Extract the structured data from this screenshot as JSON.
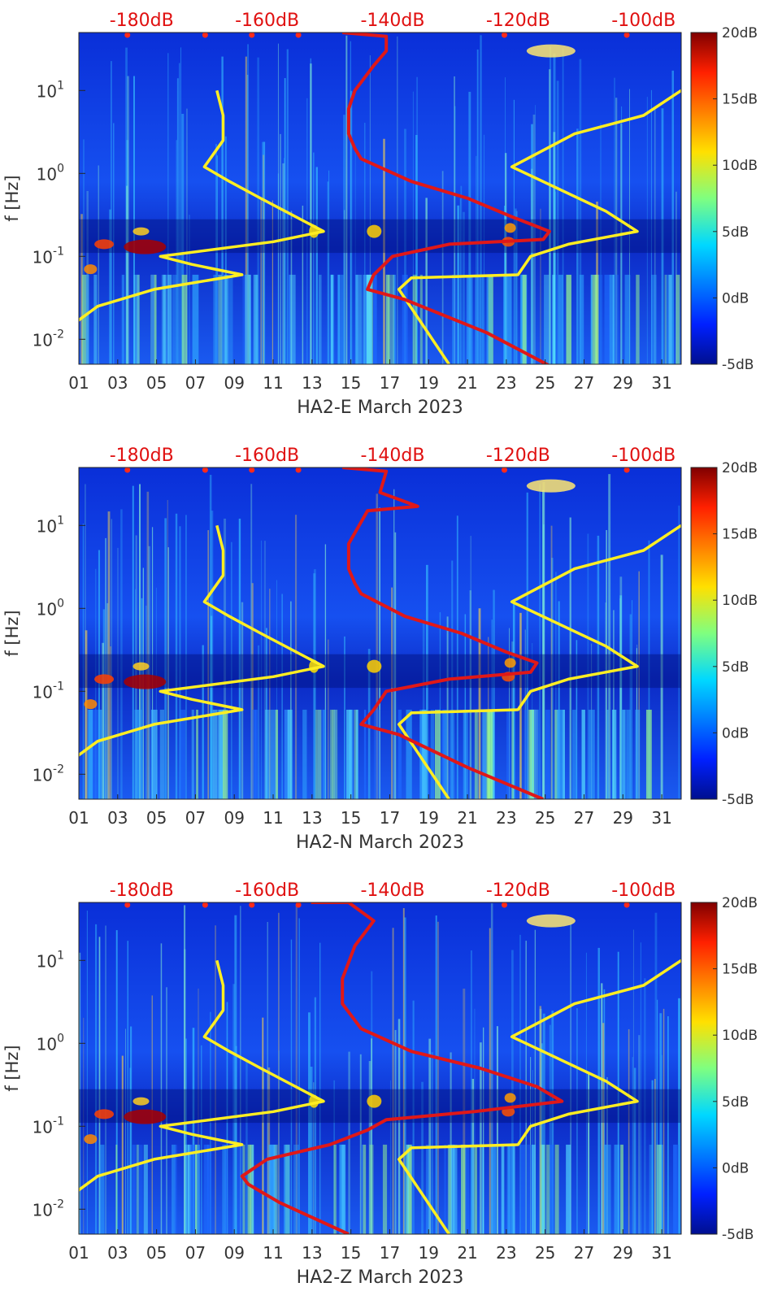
{
  "chart_data": [
    {
      "type": "heatmap",
      "title": "",
      "xlabel": "HA2-E March 2023",
      "ylabel": "f [Hz]",
      "x_ticks": [
        "01",
        "03",
        "05",
        "07",
        "09",
        "11",
        "13",
        "15",
        "17",
        "19",
        "21",
        "23",
        "25",
        "27",
        "29",
        "31"
      ],
      "x_range": [
        1,
        32
      ],
      "y_scale": "log",
      "y_range": [
        0.005,
        50
      ],
      "y_ticks": [
        {
          "base": "10",
          "exp": "-2",
          "value": 0.01
        },
        {
          "base": "10",
          "exp": "-1",
          "value": 0.1
        },
        {
          "base": "10",
          "exp": "0",
          "value": 1
        },
        {
          "base": "10",
          "exp": "1",
          "value": 10
        }
      ],
      "top_axis_labels": [
        "-180dB",
        "-160dB",
        "-140dB",
        "-120dB",
        "-100dB"
      ],
      "top_axis_range": [
        -190,
        -94
      ],
      "colorbar": {
        "ticks": [
          "20dB",
          "15dB",
          "10dB",
          "5dB",
          "0dB",
          "-5dB"
        ],
        "range": [
          -5,
          20
        ]
      },
      "series": [
        {
          "name": "yellow-low-noise",
          "color": "#ffee22",
          "points": [
            [
              -199,
              0.005
            ],
            [
              -191,
              0.015
            ],
            [
              -187,
              0.025
            ],
            [
              -178,
              0.04
            ],
            [
              -164,
              0.06
            ],
            [
              -172,
              0.08
            ],
            [
              -177,
              0.1
            ],
            [
              -159,
              0.15
            ],
            [
              -151,
              0.2
            ],
            [
              -161,
              0.5
            ],
            [
              -166,
              0.8
            ],
            [
              -170,
              1.2
            ],
            [
              -167,
              2.5
            ],
            [
              -167,
              5
            ],
            [
              -168,
              10
            ]
          ]
        },
        {
          "name": "yellow-high-noise",
          "color": "#ffee22",
          "points": [
            [
              -131,
              0.005
            ],
            [
              -139,
              0.04
            ],
            [
              -137,
              0.055
            ],
            [
              -120,
              0.06
            ],
            [
              -118,
              0.1
            ],
            [
              -112,
              0.14
            ],
            [
              -101,
              0.2
            ],
            [
              -106,
              0.35
            ],
            [
              -121,
              1.2
            ],
            [
              -111,
              3
            ],
            [
              -100,
              5
            ],
            [
              -94,
              10
            ]
          ]
        },
        {
          "name": "red-median-psd",
          "color": "#e01818",
          "points": [
            [
              -113,
              0.004
            ],
            [
              -125,
              0.012
            ],
            [
              -138,
              0.03
            ],
            [
              -144,
              0.04
            ],
            [
              -143,
              0.06
            ],
            [
              -140,
              0.1
            ],
            [
              -131,
              0.14
            ],
            [
              -116,
              0.16
            ],
            [
              -115,
              0.2
            ],
            [
              -121,
              0.3
            ],
            [
              -128,
              0.5
            ],
            [
              -137,
              0.8
            ],
            [
              -145,
              1.5
            ],
            [
              -146,
              2
            ],
            [
              -147,
              3
            ],
            [
              -147,
              6
            ],
            [
              -146,
              10
            ],
            [
              -143,
              20
            ],
            [
              -141,
              30
            ],
            [
              -141,
              45
            ],
            [
              -148,
              50
            ]
          ]
        }
      ]
    },
    {
      "type": "heatmap",
      "title": "",
      "xlabel": "HA2-N March 2023",
      "ylabel": "f [Hz]",
      "x_ticks": [
        "01",
        "03",
        "05",
        "07",
        "09",
        "11",
        "13",
        "15",
        "17",
        "19",
        "21",
        "23",
        "25",
        "27",
        "29",
        "31"
      ],
      "x_range": [
        1,
        32
      ],
      "y_scale": "log",
      "y_range": [
        0.005,
        50
      ],
      "y_ticks": [
        {
          "base": "10",
          "exp": "-2",
          "value": 0.01
        },
        {
          "base": "10",
          "exp": "-1",
          "value": 0.1
        },
        {
          "base": "10",
          "exp": "0",
          "value": 1
        },
        {
          "base": "10",
          "exp": "1",
          "value": 10
        }
      ],
      "top_axis_labels": [
        "-180dB",
        "-160dB",
        "-140dB",
        "-120dB",
        "-100dB"
      ],
      "top_axis_range": [
        -190,
        -94
      ],
      "colorbar": {
        "ticks": [
          "20dB",
          "15dB",
          "10dB",
          "5dB",
          "0dB",
          "-5dB"
        ],
        "range": [
          -5,
          20
        ]
      },
      "series": [
        {
          "name": "yellow-low-noise",
          "color": "#ffee22",
          "points": [
            [
              -199,
              0.005
            ],
            [
              -191,
              0.015
            ],
            [
              -187,
              0.025
            ],
            [
              -178,
              0.04
            ],
            [
              -164,
              0.06
            ],
            [
              -172,
              0.08
            ],
            [
              -177,
              0.1
            ],
            [
              -159,
              0.15
            ],
            [
              -151,
              0.2
            ],
            [
              -161,
              0.5
            ],
            [
              -166,
              0.8
            ],
            [
              -170,
              1.2
            ],
            [
              -167,
              2.5
            ],
            [
              -167,
              5
            ],
            [
              -168,
              10
            ]
          ]
        },
        {
          "name": "yellow-high-noise",
          "color": "#ffee22",
          "points": [
            [
              -131,
              0.005
            ],
            [
              -139,
              0.04
            ],
            [
              -137,
              0.055
            ],
            [
              -120,
              0.06
            ],
            [
              -118,
              0.1
            ],
            [
              -112,
              0.14
            ],
            [
              -101,
              0.2
            ],
            [
              -106,
              0.35
            ],
            [
              -121,
              1.2
            ],
            [
              -111,
              3
            ],
            [
              -100,
              5
            ],
            [
              -94,
              10
            ]
          ]
        },
        {
          "name": "red-median-psd",
          "color": "#e01818",
          "points": [
            [
              -116,
              0.005
            ],
            [
              -128,
              0.012
            ],
            [
              -139,
              0.03
            ],
            [
              -145,
              0.04
            ],
            [
              -143,
              0.06
            ],
            [
              -141,
              0.1
            ],
            [
              -131,
              0.14
            ],
            [
              -118,
              0.17
            ],
            [
              -117,
              0.22
            ],
            [
              -122,
              0.3
            ],
            [
              -129,
              0.5
            ],
            [
              -138,
              0.8
            ],
            [
              -145,
              1.5
            ],
            [
              -146,
              2
            ],
            [
              -147,
              3
            ],
            [
              -147,
              6
            ],
            [
              -144,
              15
            ],
            [
              -136,
              17
            ],
            [
              -142,
              25
            ],
            [
              -141,
              45
            ],
            [
              -148,
              50
            ]
          ]
        }
      ]
    },
    {
      "type": "heatmap",
      "title": "",
      "xlabel": "HA2-Z March 2023",
      "ylabel": "f [Hz]",
      "x_ticks": [
        "01",
        "03",
        "05",
        "07",
        "09",
        "11",
        "13",
        "15",
        "17",
        "19",
        "21",
        "23",
        "25",
        "27",
        "29",
        "31"
      ],
      "x_range": [
        1,
        32
      ],
      "y_scale": "log",
      "y_range": [
        0.005,
        50
      ],
      "y_ticks": [
        {
          "base": "10",
          "exp": "-2",
          "value": 0.01
        },
        {
          "base": "10",
          "exp": "-1",
          "value": 0.1
        },
        {
          "base": "10",
          "exp": "0",
          "value": 1
        },
        {
          "base": "10",
          "exp": "1",
          "value": 10
        }
      ],
      "top_axis_labels": [
        "-180dB",
        "-160dB",
        "-140dB",
        "-120dB",
        "-100dB"
      ],
      "top_axis_range": [
        -190,
        -94
      ],
      "colorbar": {
        "ticks": [
          "20dB",
          "15dB",
          "10dB",
          "5dB",
          "0dB",
          "-5dB"
        ],
        "range": [
          -5,
          20
        ]
      },
      "series": [
        {
          "name": "yellow-low-noise",
          "color": "#ffee22",
          "points": [
            [
              -199,
              0.005
            ],
            [
              -191,
              0.015
            ],
            [
              -187,
              0.025
            ],
            [
              -178,
              0.04
            ],
            [
              -164,
              0.06
            ],
            [
              -172,
              0.08
            ],
            [
              -177,
              0.1
            ],
            [
              -159,
              0.15
            ],
            [
              -151,
              0.2
            ],
            [
              -161,
              0.5
            ],
            [
              -166,
              0.8
            ],
            [
              -170,
              1.2
            ],
            [
              -167,
              2.5
            ],
            [
              -167,
              5
            ],
            [
              -168,
              10
            ]
          ]
        },
        {
          "name": "yellow-high-noise",
          "color": "#ffee22",
          "points": [
            [
              -131,
              0.005
            ],
            [
              -139,
              0.04
            ],
            [
              -137,
              0.055
            ],
            [
              -120,
              0.06
            ],
            [
              -118,
              0.1
            ],
            [
              -112,
              0.14
            ],
            [
              -101,
              0.2
            ],
            [
              -106,
              0.35
            ],
            [
              -121,
              1.2
            ],
            [
              -111,
              3
            ],
            [
              -100,
              5
            ],
            [
              -94,
              10
            ]
          ]
        },
        {
          "name": "red-median-psd",
          "color": "#e01818",
          "points": [
            [
              -147,
              0.005
            ],
            [
              -158,
              0.012
            ],
            [
              -163,
              0.02
            ],
            [
              -164,
              0.025
            ],
            [
              -160,
              0.04
            ],
            [
              -150,
              0.06
            ],
            [
              -144,
              0.09
            ],
            [
              -141,
              0.12
            ],
            [
              -127,
              0.15
            ],
            [
              -113,
              0.2
            ],
            [
              -117,
              0.3
            ],
            [
              -126,
              0.5
            ],
            [
              -137,
              0.8
            ],
            [
              -145,
              1.5
            ],
            [
              -148,
              3
            ],
            [
              -148,
              6
            ],
            [
              -146,
              15
            ],
            [
              -143,
              30
            ],
            [
              -147,
              50
            ],
            [
              -153,
              50
            ]
          ]
        }
      ]
    }
  ]
}
